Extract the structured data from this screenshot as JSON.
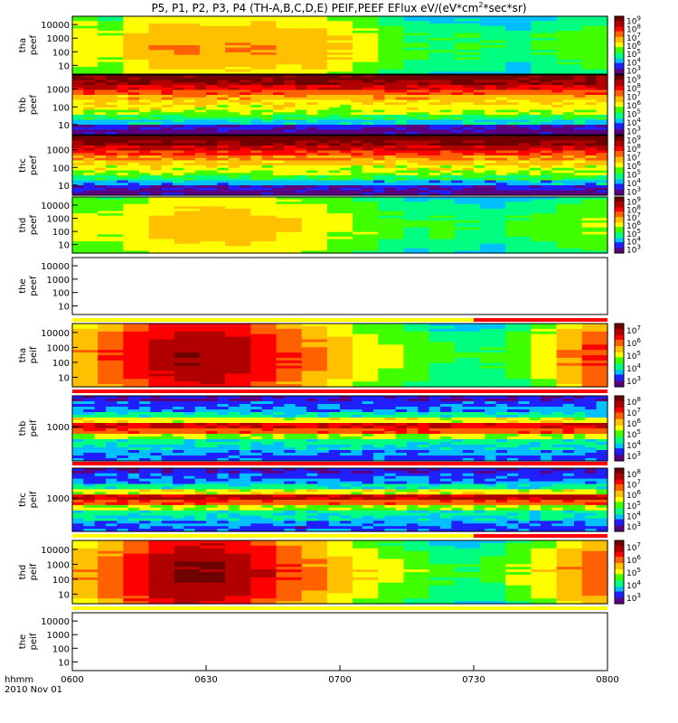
{
  "title": "P5, P1, P2, P3, P4 (TH-A,B,C,D,E) PEIF,PEEF EFlux eV/(eV*cm",
  "title_sup": "2",
  "title_tail": "*sec*sr)",
  "colors": {
    "scale": [
      "#5a0080",
      "#2020ff",
      "#00c0ff",
      "#00ff80",
      "#40ff00",
      "#ffff00",
      "#ffc000",
      "#ff6000",
      "#ff0000",
      "#b00000",
      "#700000"
    ],
    "bar_yellow": "#ffff00",
    "bar_red": "#ff0000"
  },
  "chart_data": {
    "type": "heatmap",
    "title": "P5, P1, P2, P3, P4 (TH-A,B,C,D,E) PEIF,PEEF EFlux eV/(eV*cm2*sec*sr)",
    "x_label_left": [
      "hhmm",
      "2010 Nov 01"
    ],
    "x_ticks": [
      "0600",
      "0630",
      "0700",
      "0730",
      "0800"
    ],
    "x_range": [
      "0600",
      "0800"
    ],
    "panels": [
      {
        "label1": "tha",
        "label2": "peef",
        "yticks": [
          "10",
          "100",
          "1000",
          "10000"
        ],
        "ymin": 5,
        "ymax": 30000,
        "cbar": [
          "10",
          "10",
          "10",
          "10",
          "10",
          "10",
          "10"
        ],
        "cbar_exp": [
          "3",
          "4",
          "5",
          "6",
          "7",
          "8",
          "9"
        ],
        "columns": [
          0.45,
          0.4,
          0.5,
          0.55,
          0.55,
          0.55,
          0.55,
          0.55,
          0.52,
          0.52,
          0.48,
          0.42,
          0.35,
          0.3,
          0.28,
          0.3,
          0.28,
          0.22,
          0.3,
          0.32,
          0.35
        ],
        "empty": false
      },
      {
        "label1": "thb",
        "label2": "peef",
        "yticks": [
          "10",
          "100",
          "1000"
        ],
        "ymin": 5,
        "ymax": 5000,
        "cbar": [
          "10",
          "10",
          "10",
          "10",
          "10",
          "10",
          "10"
        ],
        "cbar_exp": [
          "3",
          "4",
          "5",
          "6",
          "7",
          "8",
          "9"
        ],
        "profile": [
          0.95,
          0.9,
          0.8,
          0.7,
          0.6,
          0.55,
          0.5,
          0.45,
          0.35,
          0.25,
          0.1,
          0.05
        ],
        "empty": false
      },
      {
        "label1": "thc",
        "label2": "peef",
        "yticks": [
          "10",
          "100",
          "1000"
        ],
        "ymin": 5,
        "ymax": 5000,
        "cbar": [
          "10",
          "10",
          "10",
          "10",
          "10",
          "10",
          "10"
        ],
        "cbar_exp": [
          "3",
          "4",
          "5",
          "6",
          "7",
          "8",
          "9"
        ],
        "profile": [
          0.98,
          0.92,
          0.85,
          0.75,
          0.65,
          0.58,
          0.5,
          0.45,
          0.35,
          0.22,
          0.1,
          0.05
        ],
        "empty": false
      },
      {
        "label1": "thd",
        "label2": "peef",
        "yticks": [
          "10",
          "100",
          "1000",
          "10000"
        ],
        "ymin": 5,
        "ymax": 30000,
        "cbar": [
          "10",
          "10",
          "10",
          "10",
          "10",
          "10",
          "10"
        ],
        "cbar_exp": [
          "3",
          "4",
          "5",
          "6",
          "7",
          "8",
          "9"
        ],
        "columns": [
          0.42,
          0.4,
          0.45,
          0.5,
          0.52,
          0.52,
          0.52,
          0.5,
          0.48,
          0.45,
          0.4,
          0.38,
          0.32,
          0.28,
          0.3,
          0.28,
          0.25,
          0.3,
          0.32,
          0.35,
          0.38
        ],
        "empty": false
      },
      {
        "label1": "the",
        "label2": "peef",
        "yticks": [
          "10",
          "100",
          "1000",
          "10000"
        ],
        "ymin": 5,
        "ymax": 30000,
        "empty": true
      },
      {
        "label1": "tha",
        "label2": "peif",
        "yticks": [
          "10",
          "100",
          "1000",
          "10000"
        ],
        "ymin": 5,
        "ymax": 30000,
        "cbar": [
          "10",
          "10",
          "10",
          "10",
          "10"
        ],
        "cbar_exp": [
          "3",
          "4",
          "5",
          "6",
          "7"
        ],
        "columns": [
          0.55,
          0.65,
          0.72,
          0.78,
          0.82,
          0.82,
          0.78,
          0.72,
          0.65,
          0.58,
          0.52,
          0.45,
          0.4,
          0.36,
          0.3,
          0.28,
          0.3,
          0.36,
          0.45,
          0.55,
          0.65
        ],
        "empty": false
      },
      {
        "label1": "thb",
        "label2": "peif",
        "yticks": [
          "1000"
        ],
        "ymin": 100,
        "ymax": 10000,
        "cbar": [
          "10",
          "10",
          "10",
          "10",
          "10",
          "10"
        ],
        "cbar_exp": [
          "3",
          "4",
          "5",
          "6",
          "7",
          "8"
        ],
        "profile": [
          0.1,
          0.15,
          0.2,
          0.3,
          0.5,
          0.8,
          0.7,
          0.45,
          0.3,
          0.25,
          0.2,
          0.15
        ],
        "empty": false
      },
      {
        "label1": "thc",
        "label2": "peif",
        "yticks": [
          "1000"
        ],
        "ymin": 100,
        "ymax": 10000,
        "cbar": [
          "10",
          "10",
          "10",
          "10",
          "10",
          "10"
        ],
        "cbar_exp": [
          "3",
          "4",
          "5",
          "6",
          "7",
          "8"
        ],
        "profile": [
          0.1,
          0.15,
          0.2,
          0.3,
          0.5,
          0.85,
          0.7,
          0.45,
          0.3,
          0.25,
          0.2,
          0.15
        ],
        "empty": false
      },
      {
        "label1": "thd",
        "label2": "peif",
        "yticks": [
          "10",
          "100",
          "1000",
          "10000"
        ],
        "ymin": 5,
        "ymax": 30000,
        "cbar": [
          "10",
          "10",
          "10",
          "10",
          "10"
        ],
        "cbar_exp": [
          "3",
          "4",
          "5",
          "6",
          "7"
        ],
        "columns": [
          0.55,
          0.62,
          0.72,
          0.8,
          0.84,
          0.84,
          0.8,
          0.74,
          0.65,
          0.58,
          0.52,
          0.46,
          0.4,
          0.36,
          0.3,
          0.28,
          0.3,
          0.38,
          0.46,
          0.55,
          0.62
        ],
        "empty": false
      },
      {
        "label1": "the",
        "label2": "peif",
        "yticks": [
          "10",
          "100",
          "1000",
          "10000"
        ],
        "ymin": 5,
        "ymax": 30000,
        "empty": true
      }
    ]
  }
}
